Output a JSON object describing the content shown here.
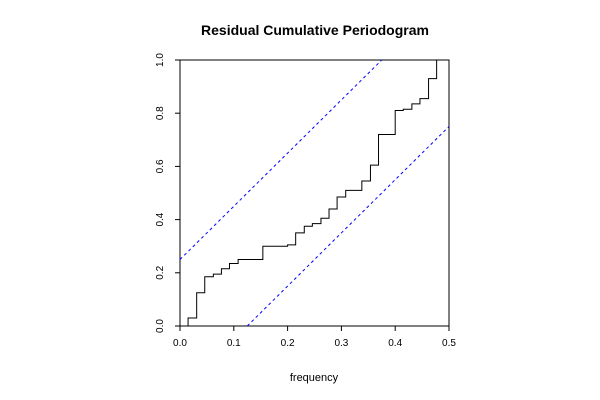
{
  "chart_data": {
    "type": "line",
    "title": "Residual Cumulative Periodogram",
    "xlabel": "frequency",
    "ylabel": "",
    "xlim": [
      0.0,
      0.5
    ],
    "ylim": [
      0.0,
      1.0
    ],
    "x_ticks": [
      "0.0",
      "0.1",
      "0.2",
      "0.3",
      "0.4",
      "0.5"
    ],
    "y_ticks": [
      "0.0",
      "0.2",
      "0.4",
      "0.6",
      "0.8",
      "1.0"
    ],
    "grid": false,
    "colors": {
      "series": "#000000",
      "bounds": "#0000ff"
    },
    "series": [
      {
        "style": "step",
        "x": [
          0.0,
          0.015,
          0.031,
          0.046,
          0.062,
          0.077,
          0.092,
          0.108,
          0.123,
          0.154,
          0.2,
          0.215,
          0.231,
          0.246,
          0.262,
          0.277,
          0.292,
          0.308,
          0.323,
          0.338,
          0.354,
          0.369,
          0.4,
          0.415,
          0.431,
          0.446,
          0.462,
          0.477,
          0.485
        ],
        "y": [
          0.0,
          0.03,
          0.125,
          0.185,
          0.195,
          0.215,
          0.235,
          0.25,
          0.25,
          0.3,
          0.305,
          0.35,
          0.375,
          0.385,
          0.405,
          0.44,
          0.485,
          0.51,
          0.51,
          0.545,
          0.605,
          0.72,
          0.81,
          0.815,
          0.835,
          0.855,
          0.93,
          1.0,
          1.0
        ]
      }
    ],
    "bounds": [
      {
        "style": "dashed",
        "x": [
          0.0,
          0.375
        ],
        "y": [
          0.25,
          1.0
        ]
      },
      {
        "style": "dashed",
        "x": [
          0.125,
          0.5
        ],
        "y": [
          0.0,
          0.75
        ]
      }
    ]
  }
}
